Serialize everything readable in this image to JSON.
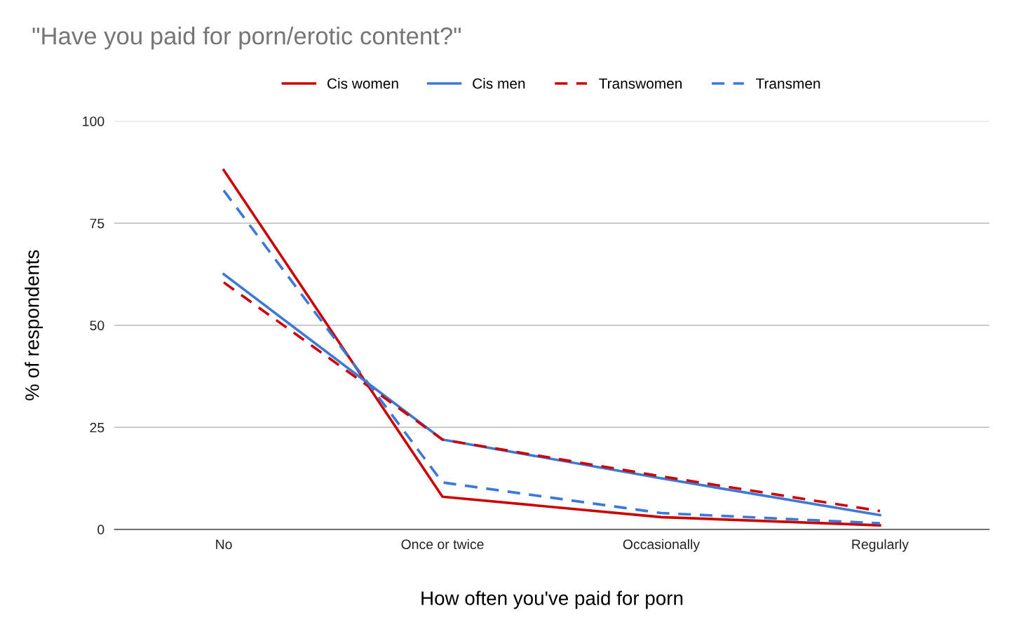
{
  "chart_data": {
    "type": "line",
    "title": "\"Have you paid for porn/erotic content?\"",
    "xlabel": "How often you've paid for porn",
    "ylabel": "% of respondents",
    "categories": [
      "No",
      "Once or twice",
      "Occasionally",
      "Regularly"
    ],
    "series": [
      {
        "name": "Cis women",
        "color": "#cc0000",
        "line_style": "solid",
        "values": [
          88,
          8,
          3,
          1
        ]
      },
      {
        "name": "Cis men",
        "color": "#3c78d8",
        "line_style": "solid",
        "values": [
          62.5,
          22,
          12.5,
          3.5
        ]
      },
      {
        "name": "Transwomen",
        "color": "#cc0000",
        "line_style": "dashed",
        "values": [
          60.5,
          22,
          13,
          4.5
        ]
      },
      {
        "name": "Transmen",
        "color": "#3c78d8",
        "line_style": "dashed",
        "values": [
          83,
          11.5,
          4,
          1.5
        ]
      }
    ],
    "ylim": [
      0,
      100
    ],
    "yticks": [
      0,
      25,
      50,
      75,
      100
    ],
    "grid": "y",
    "legend": "top",
    "marker": "none"
  }
}
